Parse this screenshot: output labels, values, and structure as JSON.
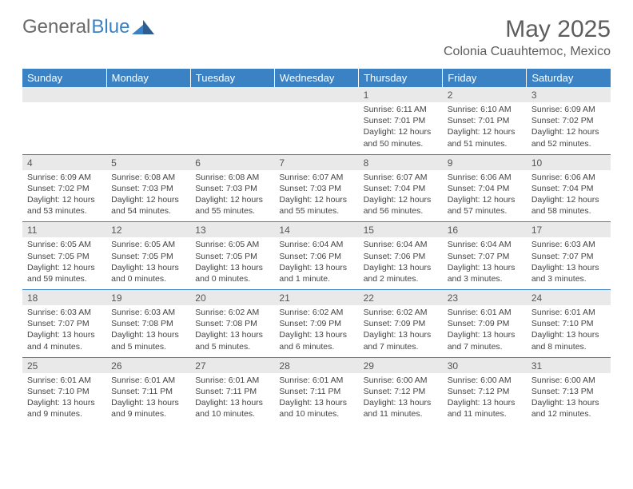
{
  "logo": {
    "part1": "General",
    "part2": "Blue"
  },
  "title": "May 2025",
  "location": "Colonia Cuauhtemoc, Mexico",
  "headers": [
    "Sunday",
    "Monday",
    "Tuesday",
    "Wednesday",
    "Thursday",
    "Friday",
    "Saturday"
  ],
  "colors": {
    "header_bg": "#3b82c4",
    "header_text": "#ffffff",
    "daynum_bg": "#e9e9e9",
    "border": "#3b82c4",
    "text": "#444444",
    "title_text": "#5d5d5d"
  },
  "weeks": [
    [
      null,
      null,
      null,
      null,
      {
        "n": "1",
        "sr": "6:11 AM",
        "ss": "7:01 PM",
        "dl": "12 hours and 50 minutes."
      },
      {
        "n": "2",
        "sr": "6:10 AM",
        "ss": "7:01 PM",
        "dl": "12 hours and 51 minutes."
      },
      {
        "n": "3",
        "sr": "6:09 AM",
        "ss": "7:02 PM",
        "dl": "12 hours and 52 minutes."
      }
    ],
    [
      {
        "n": "4",
        "sr": "6:09 AM",
        "ss": "7:02 PM",
        "dl": "12 hours and 53 minutes."
      },
      {
        "n": "5",
        "sr": "6:08 AM",
        "ss": "7:03 PM",
        "dl": "12 hours and 54 minutes."
      },
      {
        "n": "6",
        "sr": "6:08 AM",
        "ss": "7:03 PM",
        "dl": "12 hours and 55 minutes."
      },
      {
        "n": "7",
        "sr": "6:07 AM",
        "ss": "7:03 PM",
        "dl": "12 hours and 55 minutes."
      },
      {
        "n": "8",
        "sr": "6:07 AM",
        "ss": "7:04 PM",
        "dl": "12 hours and 56 minutes."
      },
      {
        "n": "9",
        "sr": "6:06 AM",
        "ss": "7:04 PM",
        "dl": "12 hours and 57 minutes."
      },
      {
        "n": "10",
        "sr": "6:06 AM",
        "ss": "7:04 PM",
        "dl": "12 hours and 58 minutes."
      }
    ],
    [
      {
        "n": "11",
        "sr": "6:05 AM",
        "ss": "7:05 PM",
        "dl": "12 hours and 59 minutes."
      },
      {
        "n": "12",
        "sr": "6:05 AM",
        "ss": "7:05 PM",
        "dl": "13 hours and 0 minutes."
      },
      {
        "n": "13",
        "sr": "6:05 AM",
        "ss": "7:05 PM",
        "dl": "13 hours and 0 minutes."
      },
      {
        "n": "14",
        "sr": "6:04 AM",
        "ss": "7:06 PM",
        "dl": "13 hours and 1 minute."
      },
      {
        "n": "15",
        "sr": "6:04 AM",
        "ss": "7:06 PM",
        "dl": "13 hours and 2 minutes."
      },
      {
        "n": "16",
        "sr": "6:04 AM",
        "ss": "7:07 PM",
        "dl": "13 hours and 3 minutes."
      },
      {
        "n": "17",
        "sr": "6:03 AM",
        "ss": "7:07 PM",
        "dl": "13 hours and 3 minutes."
      }
    ],
    [
      {
        "n": "18",
        "sr": "6:03 AM",
        "ss": "7:07 PM",
        "dl": "13 hours and 4 minutes."
      },
      {
        "n": "19",
        "sr": "6:03 AM",
        "ss": "7:08 PM",
        "dl": "13 hours and 5 minutes."
      },
      {
        "n": "20",
        "sr": "6:02 AM",
        "ss": "7:08 PM",
        "dl": "13 hours and 5 minutes."
      },
      {
        "n": "21",
        "sr": "6:02 AM",
        "ss": "7:09 PM",
        "dl": "13 hours and 6 minutes."
      },
      {
        "n": "22",
        "sr": "6:02 AM",
        "ss": "7:09 PM",
        "dl": "13 hours and 7 minutes."
      },
      {
        "n": "23",
        "sr": "6:01 AM",
        "ss": "7:09 PM",
        "dl": "13 hours and 7 minutes."
      },
      {
        "n": "24",
        "sr": "6:01 AM",
        "ss": "7:10 PM",
        "dl": "13 hours and 8 minutes."
      }
    ],
    [
      {
        "n": "25",
        "sr": "6:01 AM",
        "ss": "7:10 PM",
        "dl": "13 hours and 9 minutes."
      },
      {
        "n": "26",
        "sr": "6:01 AM",
        "ss": "7:11 PM",
        "dl": "13 hours and 9 minutes."
      },
      {
        "n": "27",
        "sr": "6:01 AM",
        "ss": "7:11 PM",
        "dl": "13 hours and 10 minutes."
      },
      {
        "n": "28",
        "sr": "6:01 AM",
        "ss": "7:11 PM",
        "dl": "13 hours and 10 minutes."
      },
      {
        "n": "29",
        "sr": "6:00 AM",
        "ss": "7:12 PM",
        "dl": "13 hours and 11 minutes."
      },
      {
        "n": "30",
        "sr": "6:00 AM",
        "ss": "7:12 PM",
        "dl": "13 hours and 11 minutes."
      },
      {
        "n": "31",
        "sr": "6:00 AM",
        "ss": "7:13 PM",
        "dl": "13 hours and 12 minutes."
      }
    ]
  ],
  "labels": {
    "sunrise": "Sunrise: ",
    "sunset": "Sunset: ",
    "daylight": "Daylight: "
  }
}
